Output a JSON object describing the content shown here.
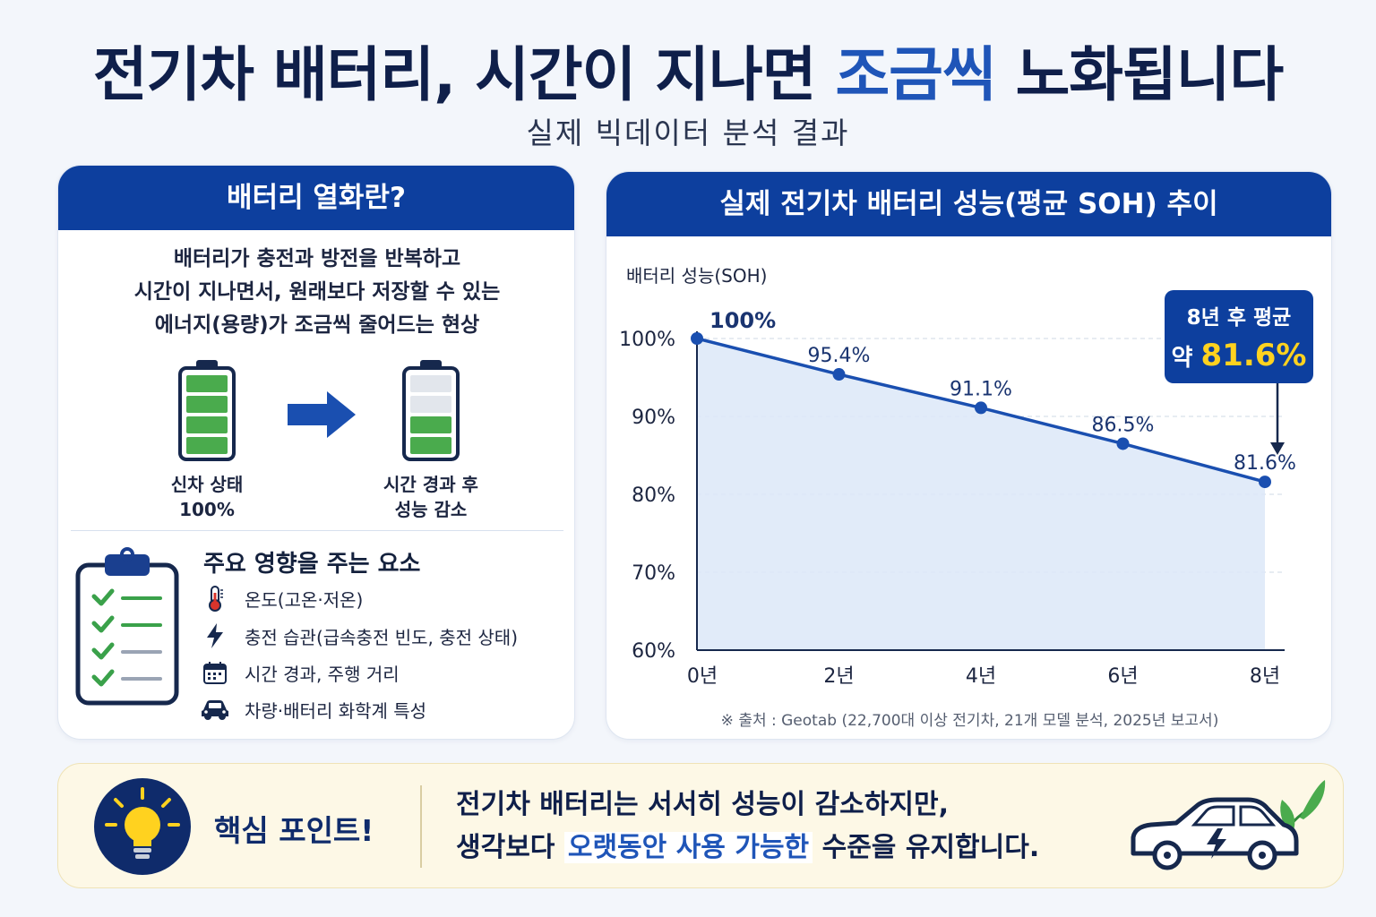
{
  "title": {
    "before": "전기차 배터리, 시간이 지나면 ",
    "highlight": "조금씩",
    "after": " 노화됩니다"
  },
  "subtitle": "실제 빅데이터 분석 결과",
  "left_panel": {
    "header": "배터리 열화란?",
    "definition_lines": [
      "배터리가 충전과 방전을 반복하고",
      "시간이 지나면서, 원래보다 저장할 수 있는",
      "에너지(용량)가 조금씩 줄어드는 현상"
    ],
    "battery_new": {
      "label_line1": "신차 상태",
      "label_line2": "100%",
      "filled_cells": 4,
      "total_cells": 4
    },
    "battery_aged": {
      "label_line1": "시간 경과 후",
      "label_line2": "성능 감소",
      "filled_cells": 2,
      "total_cells": 4
    },
    "factors_title": "주요 영향을 주는 요소",
    "factors": [
      {
        "icon": "thermometer-icon",
        "text": "온도(고온·저온)"
      },
      {
        "icon": "lightning-icon",
        "text": "충전 습관(급속충전 빈도, 충전 상태)"
      },
      {
        "icon": "calendar-icon",
        "text": "시간 경과, 주행 거리"
      },
      {
        "icon": "car-icon",
        "text": "차량·배터리 화학계 특성"
      }
    ],
    "colors": {
      "header": "#0d3f9e",
      "battery_on": "#4aab4d",
      "battery_off": "#e2e6ec",
      "check": "#3aa14a"
    }
  },
  "right_panel": {
    "header": "실제 전기차 배터리 성능(평균 SOH) 추이",
    "source": "※ 출처 : Geotab (22,700대 이상 전기차, 21개 모델 분석, 2025년 보고서)"
  },
  "chart_data": {
    "type": "area",
    "title": "실제 전기차 배터리 성능(평균 SOH) 추이",
    "ylabel": "배터리 성능(SOH)",
    "xlabel": "",
    "x": [
      0,
      2,
      4,
      6,
      8
    ],
    "x_tick_labels": [
      "0년",
      "2년",
      "4년",
      "6년",
      "8년"
    ],
    "series": [
      {
        "values": [
          100,
          95.4,
          91.1,
          86.5,
          81.6
        ]
      }
    ],
    "data_labels": [
      "100%",
      "95.4%",
      "91.1%",
      "86.5%",
      "81.6%"
    ],
    "ylim": [
      60,
      100
    ],
    "y_ticks": [
      100,
      90,
      80,
      70,
      60
    ],
    "y_tick_labels": [
      "100%",
      "90%",
      "80%",
      "70%",
      "60%"
    ],
    "grid": true,
    "callout": {
      "line1": "8년 후 평균",
      "prefix": "약 ",
      "value": "81.6%"
    },
    "colors": {
      "line": "#1a4fb0",
      "fill": "#dce7f8",
      "callout_bg": "#0d3f9e",
      "callout_value": "#ffd21f"
    }
  },
  "key_point": {
    "label": "핵심 포인트!",
    "line1": "전기차 배터리는 서서히 성능이 감소하지만,",
    "line2_before": "생각보다 ",
    "line2_highlight": "오랫동안 사용 가능한",
    "line2_after": " 수준을 유지합니다.",
    "icons": [
      "lightbulb-icon",
      "electric-car-icon"
    ],
    "colors": {
      "bg": "#fdf8e6",
      "bulb": "#ffd21f",
      "circle": "#0f2b6b",
      "leaf": "#4aab4d"
    }
  }
}
